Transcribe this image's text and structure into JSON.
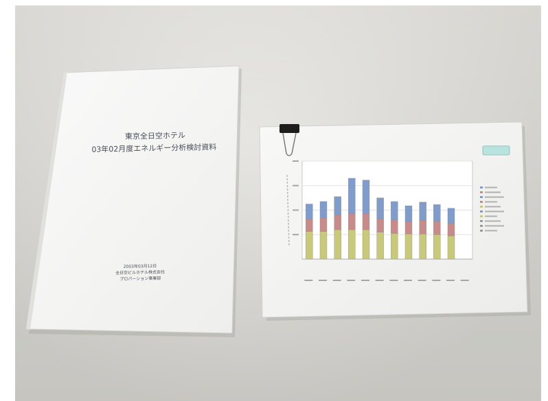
{
  "booklet": {
    "title_line1": "東京全日空ホテル",
    "title_line2": "03年02月度エネルギー分析検討資料",
    "date": "2003年03月12日",
    "company": "全日空ビルホテル株式会社",
    "department": "プロパーション事業部"
  },
  "colors": {
    "tabletop": "#dcdbd6",
    "paper": "#f5f5f3",
    "bar_base": "#c9c97a",
    "bar_mid": "#c98a8a",
    "bar_top": "#7f9ccc",
    "badge": "#b9e3de"
  },
  "icons": [
    "binder-clip-icon"
  ],
  "chart_data": {
    "type": "bar",
    "categories": [
      "1",
      "2",
      "3",
      "4",
      "5",
      "6",
      "7",
      "8",
      "9",
      "10",
      "11",
      "12"
    ],
    "series": [
      {
        "values": [
          45,
          45,
          48,
          48,
          48,
          44,
          42,
          41,
          41,
          40,
          38,
          0
        ]
      },
      {
        "values": [
          20,
          22,
          24,
          26,
          26,
          22,
          22,
          20,
          22,
          22,
          20,
          0
        ]
      },
      {
        "values": [
          25,
          27,
          30,
          58,
          55,
          34,
          30,
          26,
          30,
          27,
          25,
          0
        ]
      }
    ],
    "stacked": true,
    "ylim": [
      0,
      160
    ],
    "grid": true,
    "legend_position": "right"
  }
}
